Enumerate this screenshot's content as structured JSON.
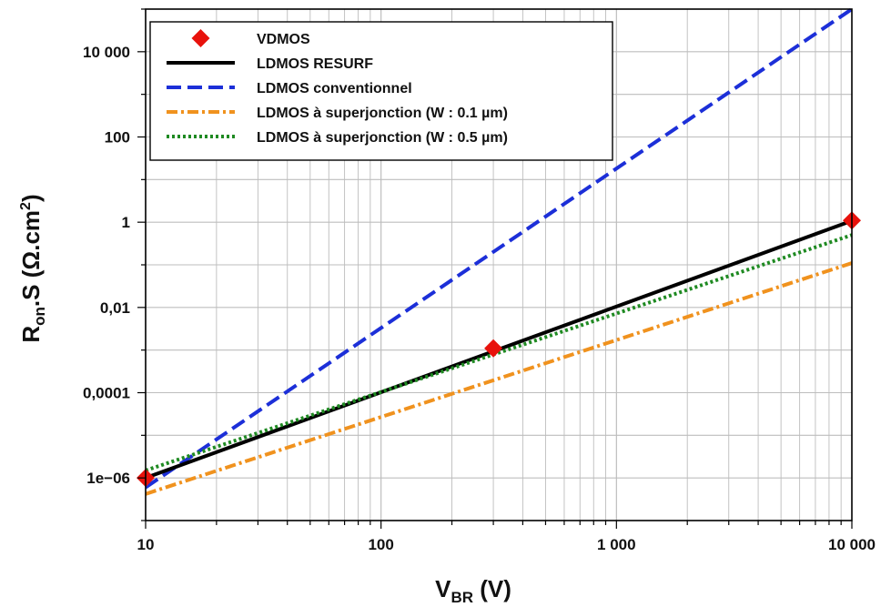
{
  "chart_data": {
    "type": "line",
    "xscale": "log",
    "yscale": "log",
    "xlim": [
      10,
      10000
    ],
    "ylim": [
      1e-07,
      100000
    ],
    "grid": true,
    "legend_placement": "top-left",
    "xlabel": {
      "main": "V",
      "sub": "BR",
      "rest": " (V)"
    },
    "ylabel": {
      "main": "R",
      "sub": "on",
      "rest": ".S (Ω.cm",
      "sup": "2",
      "close": ")"
    },
    "x_ticks": [
      {
        "value": 10,
        "label": "10"
      },
      {
        "value": 100,
        "label": "100"
      },
      {
        "value": 1000,
        "label": "1 000"
      },
      {
        "value": 10000,
        "label": "10 000"
      }
    ],
    "y_ticks": [
      {
        "value": 1e-06,
        "label": "1e−06"
      },
      {
        "value": 0.0001,
        "label": "0,0001"
      },
      {
        "value": 0.01,
        "label": "0,01"
      },
      {
        "value": 1,
        "label": "1"
      },
      {
        "value": 100,
        "label": "100"
      },
      {
        "value": 10000,
        "label": "10 000"
      }
    ],
    "series": [
      {
        "name": "VDMOS",
        "kind": "marker",
        "color": "#e8120c",
        "x": [
          10,
          300,
          10000
        ],
        "y": [
          1e-06,
          0.0011,
          1.1
        ]
      },
      {
        "name": "LDMOS RESURF",
        "kind": "solid",
        "color": "#000000",
        "x": [
          10,
          10000
        ],
        "y": [
          1e-06,
          1.08
        ]
      },
      {
        "name": "LDMOS conventionnel",
        "kind": "dashed",
        "color": "#1c2fd8",
        "x": [
          10,
          10000
        ],
        "y": [
          6e-07,
          100000
        ]
      },
      {
        "name": "LDMOS à superjonction (W : 0.1 µm)",
        "kind": "dashdot",
        "color": "#f0921e",
        "x": [
          10,
          10000
        ],
        "y": [
          4.2e-07,
          0.11
        ]
      },
      {
        "name": "LDMOS à superjonction (W : 0.5 µm)",
        "kind": "dotted",
        "color": "#1f8a22",
        "x": [
          10,
          10000
        ],
        "y": [
          1.5e-06,
          0.5
        ]
      }
    ]
  }
}
